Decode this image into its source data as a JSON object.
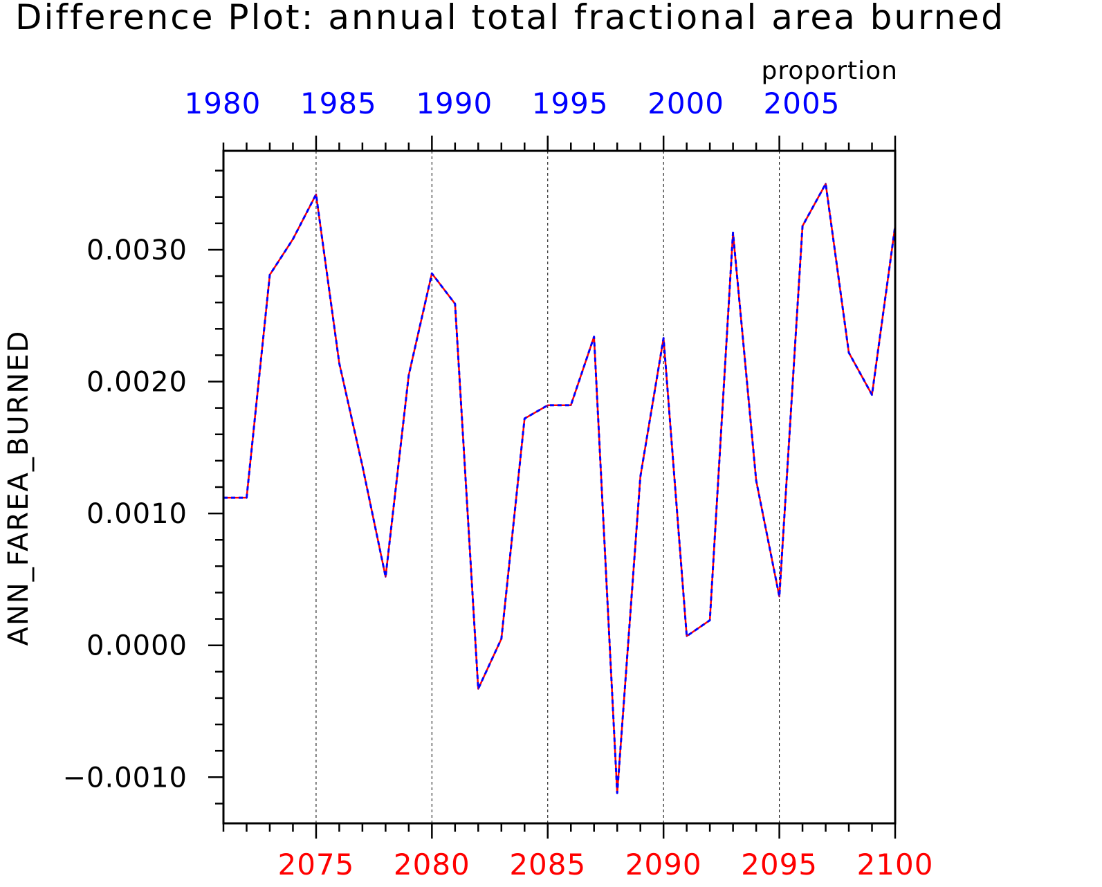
{
  "chart_data": {
    "type": "line",
    "title": "Difference Plot: annual total fractional area burned",
    "units_label": "proportion",
    "ylabel": "ANN_FAREA_BURNED",
    "xlim": [
      2071,
      2100
    ],
    "ylim": [
      -0.00135,
      0.00375
    ],
    "bottom_axis": {
      "color": "#ff0000",
      "ticks": [
        2075,
        2080,
        2085,
        2090,
        2095,
        2100
      ],
      "tick_labels": [
        "2075",
        "2080",
        "2085",
        "2090",
        "2095",
        "2100"
      ]
    },
    "top_axis": {
      "color": "#0000ff",
      "ticks": [
        1980,
        1985,
        1990,
        1995,
        2000,
        2005
      ],
      "tick_labels": [
        "1980",
        "1985",
        "1990",
        "1995",
        "2000",
        "2005"
      ]
    },
    "y_ticks": [
      -0.001,
      0.0,
      0.001,
      0.002,
      0.003
    ],
    "y_tick_labels": [
      "−0.0010",
      "0.0000",
      "0.0010",
      "0.0020",
      "0.0030"
    ],
    "grid": "vertical dashed at major x ticks",
    "x": [
      2071,
      2072,
      2073,
      2074,
      2075,
      2076,
      2077,
      2078,
      2079,
      2080,
      2081,
      2082,
      2083,
      2084,
      2085,
      2086,
      2087,
      2088,
      2089,
      2090,
      2091,
      2092,
      2093,
      2094,
      2095,
      2096,
      2097,
      2098,
      2099,
      2100
    ],
    "series": [
      {
        "color": "#ff0000",
        "style": "solid",
        "values": [
          0.00112,
          0.00112,
          0.00281,
          0.00308,
          0.00342,
          0.00214,
          0.00136,
          0.00052,
          0.00205,
          0.00282,
          0.00259,
          -0.00033,
          5e-05,
          0.00172,
          0.00182,
          0.00182,
          0.00234,
          -0.00112,
          0.00128,
          0.00233,
          7e-05,
          0.00019,
          0.00313,
          0.00125,
          0.00037,
          0.00318,
          0.0035,
          0.00222,
          0.0019,
          0.00318
        ]
      },
      {
        "color": "#0000ff",
        "style": "dashed",
        "values": [
          0.00112,
          0.00112,
          0.00281,
          0.00308,
          0.00342,
          0.00214,
          0.00136,
          0.00052,
          0.00205,
          0.00282,
          0.00259,
          -0.00033,
          5e-05,
          0.00172,
          0.00182,
          0.00182,
          0.00234,
          -0.00112,
          0.00128,
          0.00233,
          7e-05,
          0.00019,
          0.00313,
          0.00125,
          0.00037,
          0.00318,
          0.0035,
          0.00222,
          0.0019,
          0.00318
        ]
      }
    ]
  }
}
